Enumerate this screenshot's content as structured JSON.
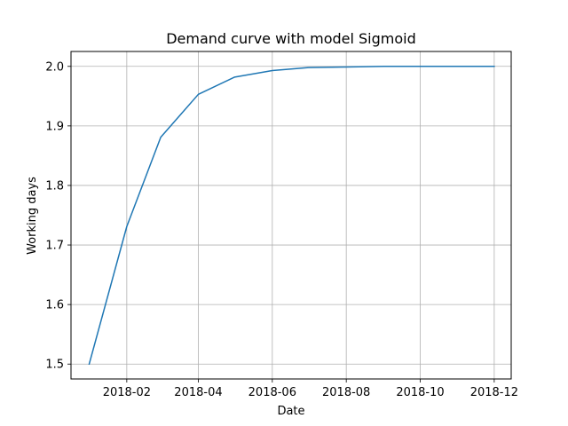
{
  "chart_data": {
    "type": "line",
    "title": "Demand curve with model Sigmoid",
    "xlabel": "Date",
    "ylabel": "Working days",
    "grid": true,
    "x_ticks": [
      "2018-02",
      "2018-04",
      "2018-06",
      "2018-08",
      "2018-10",
      "2018-12"
    ],
    "y_ticks": [
      "1.5",
      "1.6",
      "1.7",
      "1.8",
      "1.9",
      "2.0"
    ],
    "xlim": [
      "2017-12-17",
      "2018-12-15"
    ],
    "ylim": [
      1.475,
      2.025
    ],
    "series": [
      {
        "name": "",
        "color": "#1f77b4",
        "points": [
          {
            "x": "2018-01-01",
            "y": 1.5
          },
          {
            "x": "2018-02-01",
            "y": 1.731
          },
          {
            "x": "2018-03-01",
            "y": 1.881
          },
          {
            "x": "2018-04-01",
            "y": 1.953
          },
          {
            "x": "2018-05-01",
            "y": 1.982
          },
          {
            "x": "2018-06-01",
            "y": 1.993
          },
          {
            "x": "2018-07-01",
            "y": 1.998
          },
          {
            "x": "2018-08-01",
            "y": 1.999
          },
          {
            "x": "2018-09-01",
            "y": 2.0
          },
          {
            "x": "2018-10-01",
            "y": 2.0
          },
          {
            "x": "2018-11-01",
            "y": 2.0
          },
          {
            "x": "2018-12-01",
            "y": 2.0
          }
        ]
      }
    ]
  }
}
